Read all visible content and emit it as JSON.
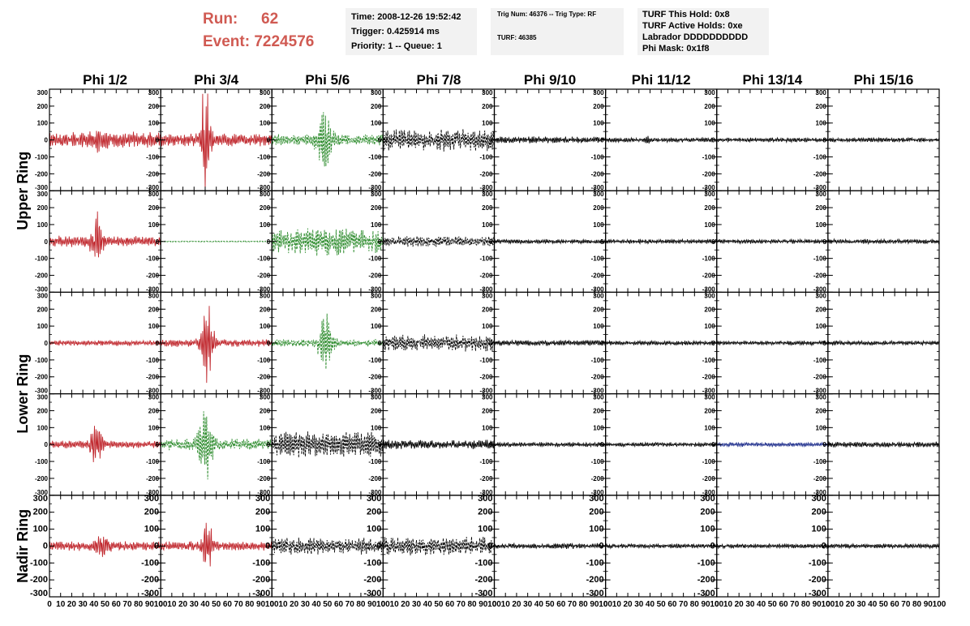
{
  "header": {
    "run_label": "Run:",
    "run_value": "62",
    "event_label": "Event:",
    "event_value": "7224576",
    "time_line": "Time: 2008-12-26 19:52:42",
    "trigger_line": "Trigger: 0.425914 ms",
    "priority_line": "Priority: 1 -- Queue: 1",
    "trig_num_line": "Trig Num: 46376 -- Trig Type: RF",
    "turf_line": "TURF: 46385",
    "turf_this_hold": "TURF This Hold: 0x8",
    "turf_active_holds": "TURF Active Holds: 0xe",
    "labrador": "Labrador DDDDDDDDDD",
    "phi_mask": "Phi Mask: 0x1f8"
  },
  "chart_data": {
    "type": "line",
    "columns": [
      "Phi 1/2",
      "Phi 3/4",
      "Phi 5/6",
      "Phi 7/8",
      "Phi 9/10",
      "Phi 11/12",
      "Phi 13/14",
      "Phi 15/16"
    ],
    "ring_labels": [
      "Upper Ring",
      "Lower Ring",
      "Nadir Ring"
    ],
    "y_ticks": [
      "300",
      "200",
      "100",
      "0",
      "-100",
      "-200",
      "-300"
    ],
    "x_ticks": [
      "0",
      "10",
      "20",
      "30",
      "40",
      "50",
      "60",
      "70",
      "80",
      "90",
      "100"
    ],
    "ylim": [
      -300,
      300
    ],
    "xlim": [
      0,
      100
    ],
    "colors": {
      "red": "#c0272d",
      "green": "#2a8a2a",
      "black": "#000000",
      "blue": "#1a2a8a"
    },
    "panels": [
      [
        {
          "c": "red",
          "a": 45,
          "b": 35,
          "p": 46,
          "w": 5
        },
        {
          "c": "red",
          "a": 35,
          "b": 320,
          "p": 40,
          "w": 4
        },
        {
          "c": "green",
          "a": 30,
          "b": 140,
          "p": 48,
          "w": 7
        },
        {
          "c": "black",
          "a": 60,
          "b": 0,
          "p": 50,
          "w": 20
        },
        {
          "c": "black",
          "a": 18,
          "b": 0,
          "p": 50,
          "w": 20
        },
        {
          "c": "black",
          "a": 12,
          "b": 15,
          "p": 38,
          "w": 2
        },
        {
          "c": "black",
          "a": 12,
          "b": 0,
          "p": 50,
          "w": 20
        },
        {
          "c": "black",
          "a": 12,
          "b": 0,
          "p": 50,
          "w": 20
        }
      ],
      [
        {
          "c": "red",
          "a": 30,
          "b": 140,
          "p": 42,
          "w": 5
        },
        {
          "c": "green",
          "a": 3,
          "b": 0,
          "p": 50,
          "w": 20
        },
        {
          "c": "green",
          "a": 60,
          "b": 20,
          "p": 50,
          "w": 20
        },
        {
          "c": "black",
          "a": 30,
          "b": 0,
          "p": 50,
          "w": 20
        },
        {
          "c": "black",
          "a": 12,
          "b": 0,
          "p": 50,
          "w": 20
        },
        {
          "c": "black",
          "a": 12,
          "b": 0,
          "p": 50,
          "w": 20
        },
        {
          "c": "black",
          "a": 12,
          "b": 0,
          "p": 50,
          "w": 20
        },
        {
          "c": "black",
          "a": 12,
          "b": 0,
          "p": 50,
          "w": 20
        }
      ],
      [
        {
          "c": "red",
          "a": 15,
          "b": 0,
          "p": 50,
          "w": 20
        },
        {
          "c": "red",
          "a": 20,
          "b": 230,
          "p": 42,
          "w": 5
        },
        {
          "c": "green",
          "a": 20,
          "b": 150,
          "p": 48,
          "w": 6
        },
        {
          "c": "black",
          "a": 45,
          "b": 0,
          "p": 50,
          "w": 20
        },
        {
          "c": "black",
          "a": 15,
          "b": 0,
          "p": 50,
          "w": 20
        },
        {
          "c": "black",
          "a": 12,
          "b": 0,
          "p": 50,
          "w": 20
        },
        {
          "c": "black",
          "a": 12,
          "b": 0,
          "p": 50,
          "w": 20
        },
        {
          "c": "black",
          "a": 12,
          "b": 0,
          "p": 50,
          "w": 20
        }
      ],
      [
        {
          "c": "red",
          "a": 20,
          "b": 110,
          "p": 42,
          "w": 5
        },
        {
          "c": "green",
          "a": 30,
          "b": 180,
          "p": 40,
          "w": 6
        },
        {
          "c": "black",
          "a": 70,
          "b": 0,
          "p": 50,
          "w": 20
        },
        {
          "c": "black",
          "a": 25,
          "b": 0,
          "p": 50,
          "w": 20
        },
        {
          "c": "black",
          "a": 12,
          "b": 0,
          "p": 50,
          "w": 20
        },
        {
          "c": "black",
          "a": 12,
          "b": 0,
          "p": 50,
          "w": 20
        },
        {
          "c": "blue",
          "a": 12,
          "b": 0,
          "p": 50,
          "w": 20
        },
        {
          "c": "black",
          "a": 15,
          "b": 0,
          "p": 50,
          "w": 20
        }
      ],
      [
        {
          "c": "red",
          "a": 25,
          "b": 60,
          "p": 48,
          "w": 5
        },
        {
          "c": "red",
          "a": 25,
          "b": 150,
          "p": 42,
          "w": 4
        },
        {
          "c": "black",
          "a": 45,
          "b": 0,
          "p": 50,
          "w": 20
        },
        {
          "c": "black",
          "a": 50,
          "b": 0,
          "p": 50,
          "w": 20
        },
        {
          "c": "black",
          "a": 15,
          "b": 0,
          "p": 50,
          "w": 20
        },
        {
          "c": "black",
          "a": 12,
          "b": 0,
          "p": 50,
          "w": 20
        },
        {
          "c": "black",
          "a": 12,
          "b": 0,
          "p": 50,
          "w": 20
        },
        {
          "c": "black",
          "a": 12,
          "b": 0,
          "p": 50,
          "w": 20
        }
      ]
    ]
  }
}
